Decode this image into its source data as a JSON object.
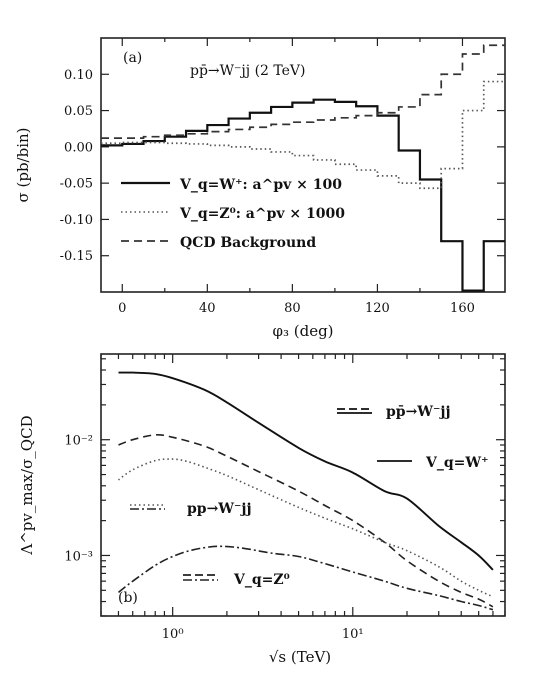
{
  "chart_data": [
    {
      "type": "line",
      "panel_label": "(a)",
      "title": "pp̄→W⁻jj (2 TeV)",
      "xlabel": "φ₃ (deg)",
      "ylabel": "σ (pb/bin)",
      "xlim": [
        -10,
        180
      ],
      "ylim": [
        -0.2,
        0.15
      ],
      "xticks": [
        0,
        40,
        80,
        120,
        160
      ],
      "yticks": [
        0.1,
        0.05,
        0.0,
        -0.05,
        -0.1,
        -0.15
      ],
      "ytick_labels": [
        "0.10",
        "0.05",
        "0.00",
        "-0.05",
        "-0.10",
        "-0.15"
      ],
      "bin_edges": [
        -10,
        0,
        10,
        20,
        30,
        40,
        50,
        60,
        70,
        80,
        90,
        100,
        110,
        120,
        130,
        140,
        150,
        160,
        170,
        180
      ],
      "series": [
        {
          "legend": "V_q=W⁺: a^pv × 100",
          "style": "solid",
          "color": "#111111",
          "values": [
            0.002,
            0.004,
            0.008,
            0.014,
            0.022,
            0.03,
            0.039,
            0.047,
            0.055,
            0.061,
            0.065,
            0.062,
            0.056,
            0.043,
            -0.005,
            -0.045,
            -0.13,
            -0.198,
            -0.13
          ]
        },
        {
          "legend": "V_q=Z⁰: a^pv × 1000",
          "style": "dotted",
          "color": "#555555",
          "values": [
            0.005,
            0.006,
            0.006,
            0.005,
            0.004,
            0.002,
            0.0,
            -0.003,
            -0.007,
            -0.012,
            -0.018,
            -0.024,
            -0.032,
            -0.04,
            -0.05,
            -0.057,
            -0.03,
            0.05,
            0.09
          ]
        },
        {
          "legend": "QCD Background",
          "style": "dashed",
          "color": "#333333",
          "values": [
            0.012,
            0.012,
            0.014,
            0.016,
            0.018,
            0.021,
            0.024,
            0.027,
            0.031,
            0.034,
            0.037,
            0.04,
            0.043,
            0.047,
            0.055,
            0.072,
            0.1,
            0.128,
            0.14
          ]
        }
      ]
    },
    {
      "type": "line",
      "panel_label": "(b)",
      "xlabel": "√s (TeV)",
      "ylabel": "Λ^pv_max/σ_QCD",
      "x_scale": "log",
      "y_scale": "log",
      "xlim": [
        0.4,
        70
      ],
      "ylim": [
        0.0003,
        0.055
      ],
      "x_major_ticks": [
        1,
        10
      ],
      "x_tick_labels": [
        "10⁰",
        "10¹"
      ],
      "y_major_ticks": [
        0.01,
        0.001
      ],
      "y_tick_labels": [
        "10⁻²",
        "10⁻³"
      ],
      "legend": {
        "ppbar": "pp̄→W⁻jj",
        "pp": "pp→W⁻jj",
        "W": "V_q=W⁺",
        "Z": "V_q=Z⁰"
      },
      "series": [
        {
          "collider": "ppbar",
          "boson": "W",
          "style": "solid",
          "color": "#111111",
          "x": [
            0.5,
            0.6,
            0.8,
            1.0,
            1.5,
            2,
            3,
            5,
            7,
            10,
            15,
            20,
            30,
            40,
            50,
            60
          ],
          "y": [
            0.038,
            0.038,
            0.037,
            0.034,
            0.027,
            0.021,
            0.014,
            0.0085,
            0.0065,
            0.0052,
            0.0036,
            0.0031,
            0.0018,
            0.0013,
            0.001,
            0.00075
          ]
        },
        {
          "collider": "ppbar",
          "boson": "Z",
          "style": "dashed",
          "color": "#222222",
          "x": [
            0.5,
            0.6,
            0.8,
            1.0,
            1.5,
            2,
            3,
            5,
            7,
            10,
            15,
            20,
            30,
            40,
            50,
            60
          ],
          "y": [
            0.009,
            0.01,
            0.011,
            0.0105,
            0.0088,
            0.0072,
            0.0053,
            0.0036,
            0.0027,
            0.002,
            0.0013,
            0.0009,
            0.0006,
            0.00048,
            0.00042,
            0.00036
          ]
        },
        {
          "collider": "pp",
          "boson": "W",
          "style": "dotted",
          "color": "#555555",
          "x": [
            0.5,
            0.6,
            0.8,
            1.0,
            1.2,
            1.5,
            2,
            3,
            5,
            7,
            10,
            15,
            20,
            30,
            40,
            50,
            60
          ],
          "y": [
            0.0045,
            0.0055,
            0.0066,
            0.0068,
            0.0065,
            0.0058,
            0.0049,
            0.0037,
            0.0026,
            0.0021,
            0.0017,
            0.0013,
            0.0011,
            0.0008,
            0.0006,
            0.0005,
            0.00044
          ]
        },
        {
          "collider": "pp",
          "boson": "Z",
          "style": "dashdot",
          "color": "#222222",
          "x": [
            0.5,
            0.6,
            0.8,
            1.0,
            1.3,
            1.8,
            2.5,
            3.5,
            5,
            7,
            10,
            15,
            20,
            30,
            40,
            50,
            60
          ],
          "y": [
            0.00048,
            0.0006,
            0.00082,
            0.00098,
            0.00112,
            0.0012,
            0.00115,
            0.00105,
            0.00098,
            0.00085,
            0.00072,
            0.0006,
            0.00052,
            0.00045,
            0.0004,
            0.00037,
            0.00034
          ]
        }
      ]
    }
  ]
}
